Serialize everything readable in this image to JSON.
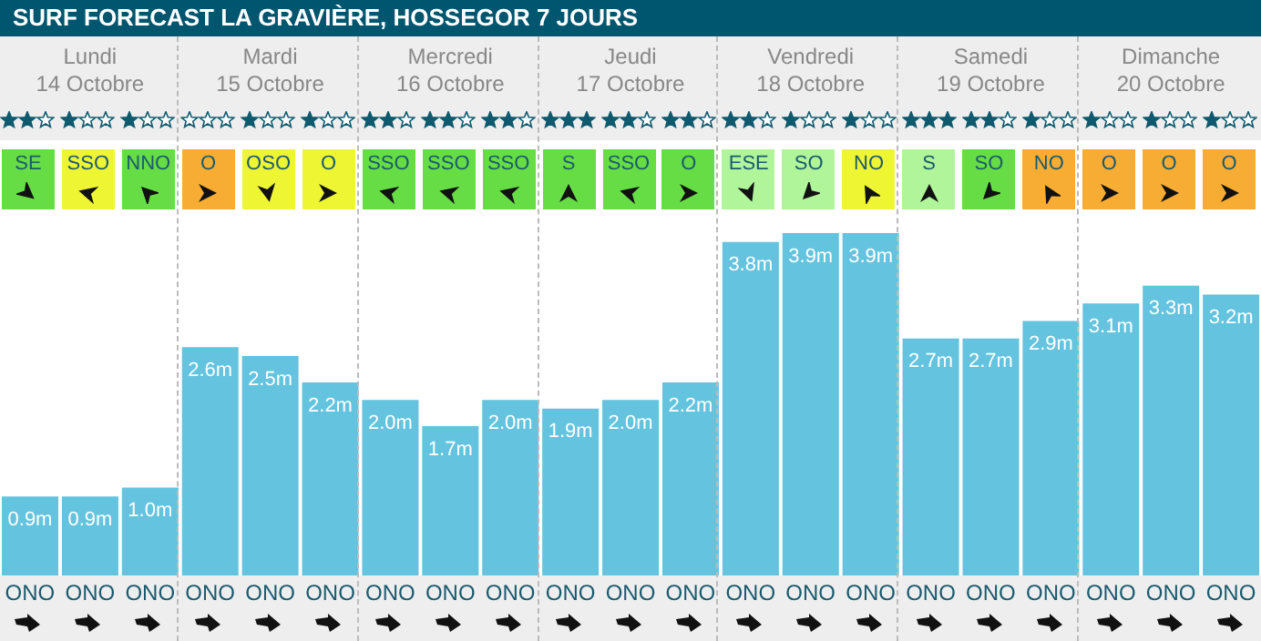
{
  "chart_data": {
    "type": "bar",
    "title": "SURF FORECAST LA GRAVIÈRE, HOSSEGOR 7 JOURS",
    "categories": [
      "ONO",
      "ONO",
      "ONO",
      "ONO",
      "ONO",
      "ONO",
      "ONO",
      "ONO",
      "ONO",
      "ONO",
      "ONO",
      "ONO",
      "ONO",
      "ONO",
      "ONO",
      "ONO",
      "ONO",
      "ONO",
      "ONO",
      "ONO",
      "ONO"
    ],
    "values": [
      0.9,
      0.9,
      1.0,
      2.6,
      2.5,
      2.2,
      2.0,
      1.7,
      2.0,
      1.9,
      2.0,
      2.2,
      3.8,
      3.9,
      3.9,
      2.7,
      2.7,
      2.9,
      3.1,
      3.3,
      3.2
    ],
    "value_labels": [
      "0.9m",
      "0.9m",
      "1.0m",
      "2.6m",
      "2.5m",
      "2.2m",
      "2.0m",
      "1.7m",
      "2.0m",
      "1.9m",
      "2.0m",
      "2.2m",
      "3.8m",
      "3.9m",
      "3.9m",
      "2.7m",
      "2.7m",
      "2.9m",
      "3.1m",
      "3.3m",
      "3.2m"
    ],
    "color": "#64c3de",
    "annotations": [
      "Lundi",
      "14 Octobre",
      "Mardi",
      "15 Octobre",
      "Mercredi",
      "16 Octobre",
      "Jeudi",
      "17 Octobre",
      "Vendredi",
      "18 Octobre",
      "Samedi",
      "19 Octobre",
      "Dimanche",
      "20 Octobre",
      "SE",
      "SSO",
      "NNO",
      "O",
      "OSO",
      "O",
      "SSO",
      "SSO",
      "SSO",
      "S",
      "SSO",
      "O",
      "ESE",
      "SO",
      "NO",
      "S",
      "SO",
      "NO",
      "O",
      "O",
      "O"
    ]
  }
}
